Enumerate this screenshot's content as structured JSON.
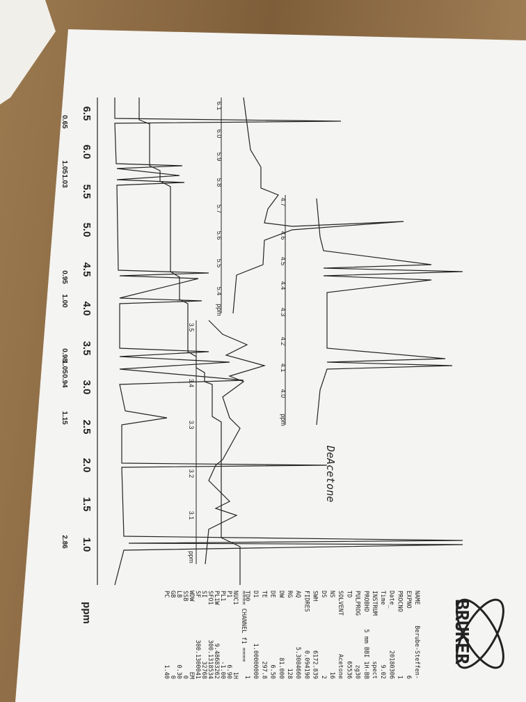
{
  "spectrum": {
    "axis_labels": [
      "6.5",
      "6.0",
      "5.5",
      "5.0",
      "4.5",
      "4.0",
      "3.5",
      "3.0",
      "2.5",
      "2.0",
      "1.5",
      "1.0"
    ],
    "axis_unit": "ppm",
    "integrals": [
      "0.65",
      "1.05",
      "1.03",
      "0.95",
      "1.00",
      "0.98",
      "1.05",
      "0.94",
      "1.15",
      "2.86"
    ]
  },
  "insets": [
    {
      "labels": [
        "6.1",
        "6.0",
        "5.9",
        "5.8",
        "5.7",
        "5.6",
        "5.5",
        "5.4"
      ],
      "unit": "ppm"
    },
    {
      "labels": [
        "4.7",
        "4.6",
        "4.5",
        "4.4",
        "4.3",
        "4.2",
        "4.1",
        "4.0"
      ],
      "unit": "ppm"
    },
    {
      "labels": [
        "3.5",
        "3.4",
        "3.3",
        "3.2",
        "3.1"
      ],
      "unit": "ppm"
    }
  ],
  "handwriting": "DeAcetone",
  "logo": "BRUKER",
  "parameters": [
    [
      "NAME",
      "Berube-Steffen-"
    ],
    [
      "EXPNO",
      "6"
    ],
    [
      "PROCNO",
      "1"
    ],
    [
      "Date_",
      "20180306"
    ],
    [
      "Time",
      "9.02"
    ],
    [
      "INSTRUM",
      "spect"
    ],
    [
      "PROBHD",
      "5 mm BBI 1H-BB"
    ],
    [
      "PULPROG",
      "zg30"
    ],
    [
      "TD",
      "65536"
    ],
    [
      "SOLVENT",
      "Acetone"
    ],
    [
      "NS",
      "16"
    ],
    [
      "DS",
      "2"
    ],
    [
      "SWH",
      "6172.839"
    ],
    [
      "FIDRES",
      "0.094190"
    ],
    [
      "AQ",
      "5.3084660"
    ],
    [
      "RG",
      "128"
    ],
    [
      "DW",
      "81.000"
    ],
    [
      "DE",
      "6.50"
    ],
    [
      "TE",
      "297.8"
    ],
    [
      "D1",
      "1.00000000"
    ],
    [
      "TD0",
      "1"
    ]
  ],
  "channel_header": "==== CHANNEL f1 ====",
  "channel_parameters": [
    [
      "NUC1",
      "1H"
    ],
    [
      "P1",
      "6.90"
    ],
    [
      "PL1",
      "-1.00"
    ],
    [
      "PL1W",
      "9.48683262"
    ],
    [
      "SFO1",
      "300.1318534"
    ],
    [
      "SI",
      "32768"
    ],
    [
      "SF",
      "300.1300041"
    ],
    [
      "WDW",
      "EM"
    ],
    [
      "SSB",
      "0"
    ],
    [
      "LB",
      "0.30"
    ],
    [
      "GB",
      "0"
    ],
    [
      "PC",
      "1.40"
    ]
  ]
}
